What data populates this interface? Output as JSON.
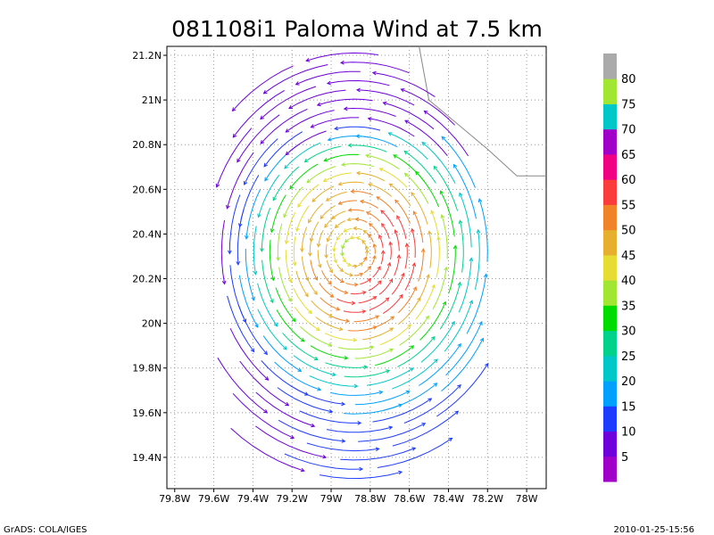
{
  "chart_data": {
    "type": "vector-field",
    "title": "081108i1 Paloma Wind at 7.5 km",
    "xlabel": "",
    "ylabel": "",
    "xlim": [
      -79.84,
      -77.9
    ],
    "ylim": [
      19.26,
      21.24
    ],
    "x_ticks": [
      {
        "v": -79.8,
        "label": "79.8W"
      },
      {
        "v": -79.6,
        "label": "79.6W"
      },
      {
        "v": -79.4,
        "label": "79.4W"
      },
      {
        "v": -79.2,
        "label": "79.2W"
      },
      {
        "v": -79.0,
        "label": "79W"
      },
      {
        "v": -78.8,
        "label": "78.8W"
      },
      {
        "v": -78.6,
        "label": "78.6W"
      },
      {
        "v": -78.4,
        "label": "78.4W"
      },
      {
        "v": -78.2,
        "label": "78.2W"
      },
      {
        "v": -78.0,
        "label": "78W"
      }
    ],
    "y_ticks": [
      {
        "v": 19.4,
        "label": "19.4N"
      },
      {
        "v": 19.6,
        "label": "19.6N"
      },
      {
        "v": 19.8,
        "label": "19.8N"
      },
      {
        "v": 20.0,
        "label": "20N"
      },
      {
        "v": 20.2,
        "label": "20.2N"
      },
      {
        "v": 20.4,
        "label": "20.4N"
      },
      {
        "v": 20.6,
        "label": "20.6N"
      },
      {
        "v": 20.8,
        "label": "20.8N"
      },
      {
        "v": 21.0,
        "label": "21N"
      },
      {
        "v": 21.2,
        "label": "21.2N"
      }
    ],
    "grid": true,
    "vortex": {
      "center_lon": -78.88,
      "center_lat": 20.32,
      "rotation": "counterclockwise",
      "max_speed_region": "east-southeast of center"
    },
    "coastline": [
      [
        -78.55,
        21.24
      ],
      [
        -78.5,
        21.0
      ],
      [
        -78.2,
        20.78
      ],
      [
        -78.05,
        20.66
      ],
      [
        -77.9,
        20.66
      ]
    ],
    "colorbar": {
      "levels": [
        5,
        10,
        15,
        20,
        25,
        30,
        35,
        40,
        45,
        50,
        55,
        60,
        65,
        70,
        75,
        80
      ],
      "colors": [
        "#a000c8",
        "#6e00dc",
        "#1e3cff",
        "#00a0ff",
        "#00c8c8",
        "#00d28c",
        "#00dc00",
        "#a0e632",
        "#e6dc32",
        "#e6af2d",
        "#f08228",
        "#fa3c3c",
        "#f00082",
        "#a000c8",
        "#00c8c8",
        "#a0e632",
        "#aaaaaa"
      ]
    }
  },
  "footer": {
    "left": "GrADS: COLA/IGES",
    "right": "2010-01-25-15:56"
  }
}
